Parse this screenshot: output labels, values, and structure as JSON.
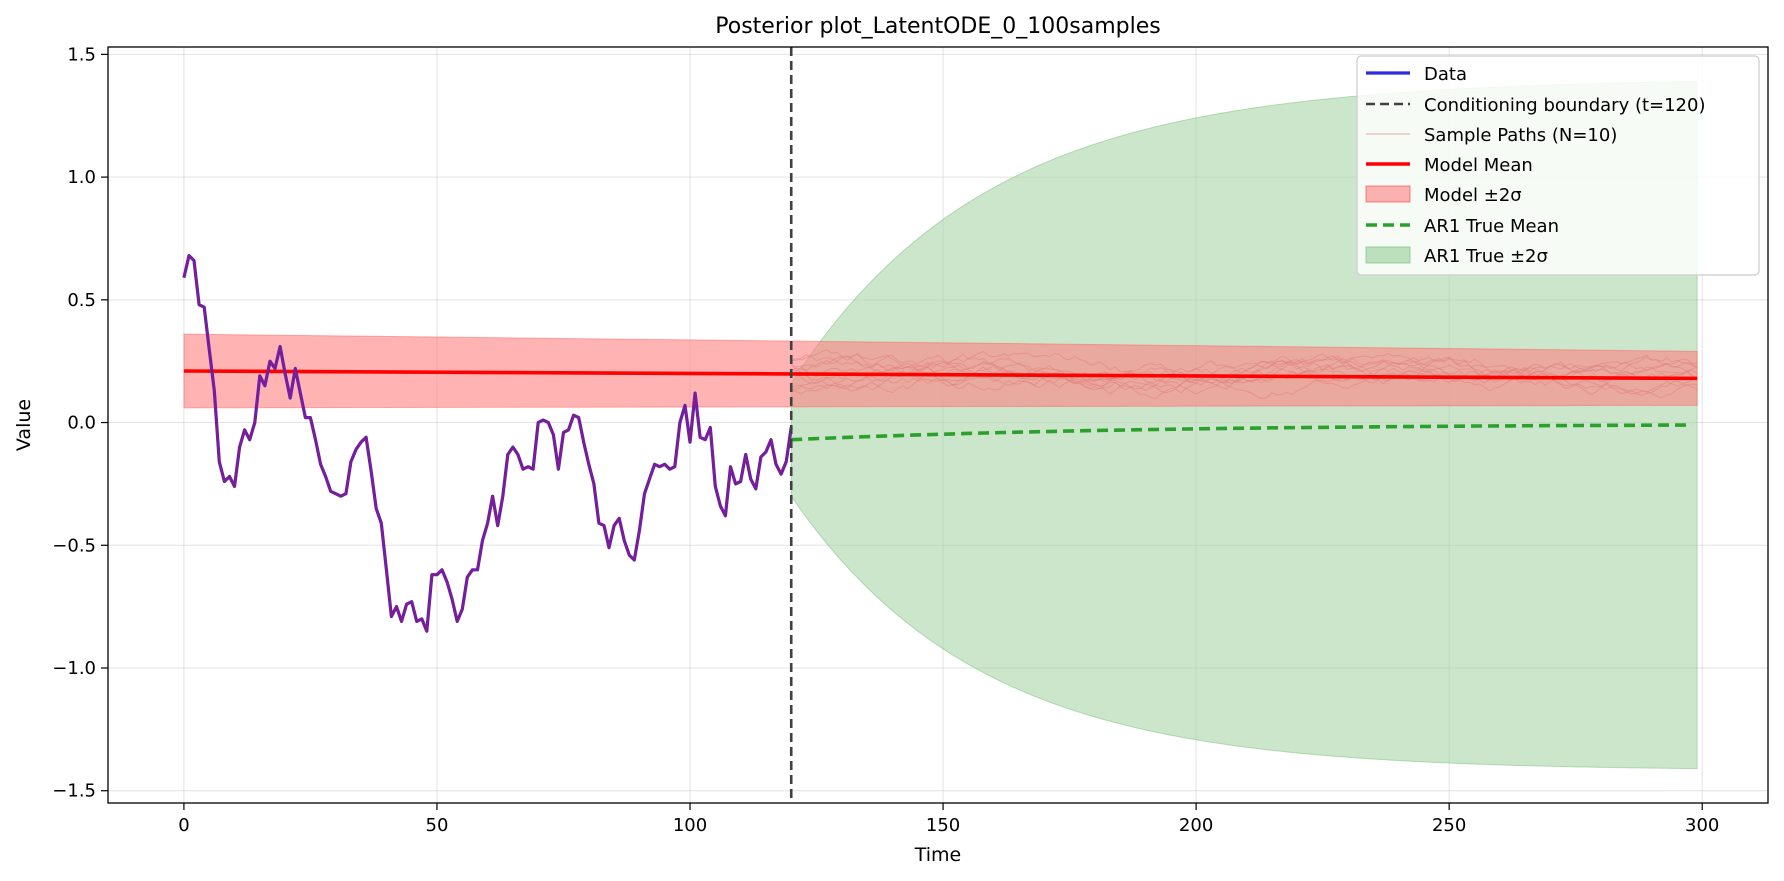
{
  "chart_data": {
    "type": "line",
    "title": "Posterior plot_LatentODE_0_100samples",
    "xlabel": "Time",
    "ylabel": "Value",
    "xlim": [
      -15,
      313
    ],
    "ylim": [
      -1.55,
      1.53
    ],
    "xticks": [
      0,
      50,
      100,
      150,
      200,
      250,
      300
    ],
    "yticks": [
      -1.5,
      -1.0,
      -0.5,
      0.0,
      0.5,
      1.0,
      1.5
    ],
    "xtick_labels": [
      "0",
      "50",
      "100",
      "150",
      "200",
      "250",
      "300"
    ],
    "ytick_labels": [
      "−1.5",
      "−1.0",
      "−0.5",
      "0.0",
      "0.5",
      "1.0",
      "1.5"
    ],
    "grid": true,
    "legend_position": "top-right",
    "conditioning_boundary": 120,
    "colors": {
      "data": "#2b2be0",
      "data_overlay": "#8a1a8a",
      "boundary": "#404040",
      "sample_paths": "#e08080",
      "model_mean": "#ff0000",
      "model_band": "#ff8080",
      "ar1_mean": "#2ca02c",
      "ar1_band": "#a8d5a8"
    },
    "series": {
      "data": {
        "name": "Data",
        "x_start": 0,
        "values": [
          0.59,
          0.68,
          0.66,
          0.48,
          0.47,
          0.3,
          0.13,
          -0.16,
          -0.24,
          -0.22,
          -0.26,
          -0.1,
          -0.03,
          -0.07,
          0.0,
          0.19,
          0.15,
          0.25,
          0.22,
          0.31,
          0.2,
          0.1,
          0.22,
          0.12,
          0.02,
          0.02,
          -0.07,
          -0.17,
          -0.22,
          -0.28,
          -0.29,
          -0.3,
          -0.29,
          -0.16,
          -0.11,
          -0.08,
          -0.06,
          -0.2,
          -0.35,
          -0.41,
          -0.6,
          -0.79,
          -0.75,
          -0.81,
          -0.74,
          -0.73,
          -0.81,
          -0.8,
          -0.85,
          -0.62,
          -0.62,
          -0.6,
          -0.65,
          -0.72,
          -0.81,
          -0.76,
          -0.63,
          -0.6,
          -0.6,
          -0.48,
          -0.41,
          -0.3,
          -0.42,
          -0.3,
          -0.13,
          -0.1,
          -0.13,
          -0.19,
          -0.18,
          -0.19,
          0.0,
          0.01,
          0.0,
          -0.05,
          -0.19,
          -0.04,
          -0.03,
          0.03,
          0.02,
          -0.08,
          -0.17,
          -0.25,
          -0.41,
          -0.42,
          -0.51,
          -0.42,
          -0.39,
          -0.48,
          -0.54,
          -0.56,
          -0.44,
          -0.29,
          -0.23,
          -0.17,
          -0.18,
          -0.17,
          -0.19,
          -0.18,
          0.0,
          0.07,
          -0.08,
          0.12,
          -0.06,
          -0.07,
          -0.02,
          -0.26,
          -0.34,
          -0.38,
          -0.18,
          -0.25,
          -0.24,
          -0.13,
          -0.23,
          -0.27,
          -0.14,
          -0.12,
          -0.07,
          -0.17,
          -0.21,
          -0.16,
          -0.02
        ]
      },
      "boundary": {
        "name": "Conditioning boundary (t=120)"
      },
      "sample_paths": {
        "name": "Sample Paths (N=10)",
        "count": 10,
        "x_range": [
          120,
          299
        ],
        "center": 0.19,
        "spread": 0.11
      },
      "model_mean": {
        "name": "Model Mean",
        "x": [
          0,
          299
        ],
        "y": [
          0.21,
          0.18
        ]
      },
      "model_band": {
        "name": "Model ±2σ",
        "x": [
          0,
          299
        ],
        "upper": [
          0.36,
          0.29
        ],
        "lower": [
          0.06,
          0.07
        ]
      },
      "ar1_mean": {
        "name": "AR1 True Mean",
        "x_range": [
          120,
          299
        ],
        "y_start": -0.07,
        "y_end": -0.01
      },
      "ar1_band": {
        "name": "AR1 True ±2σ",
        "x_range": [
          120,
          299
        ],
        "half_width_start": 0.23,
        "half_width_end": 1.4
      }
    }
  }
}
